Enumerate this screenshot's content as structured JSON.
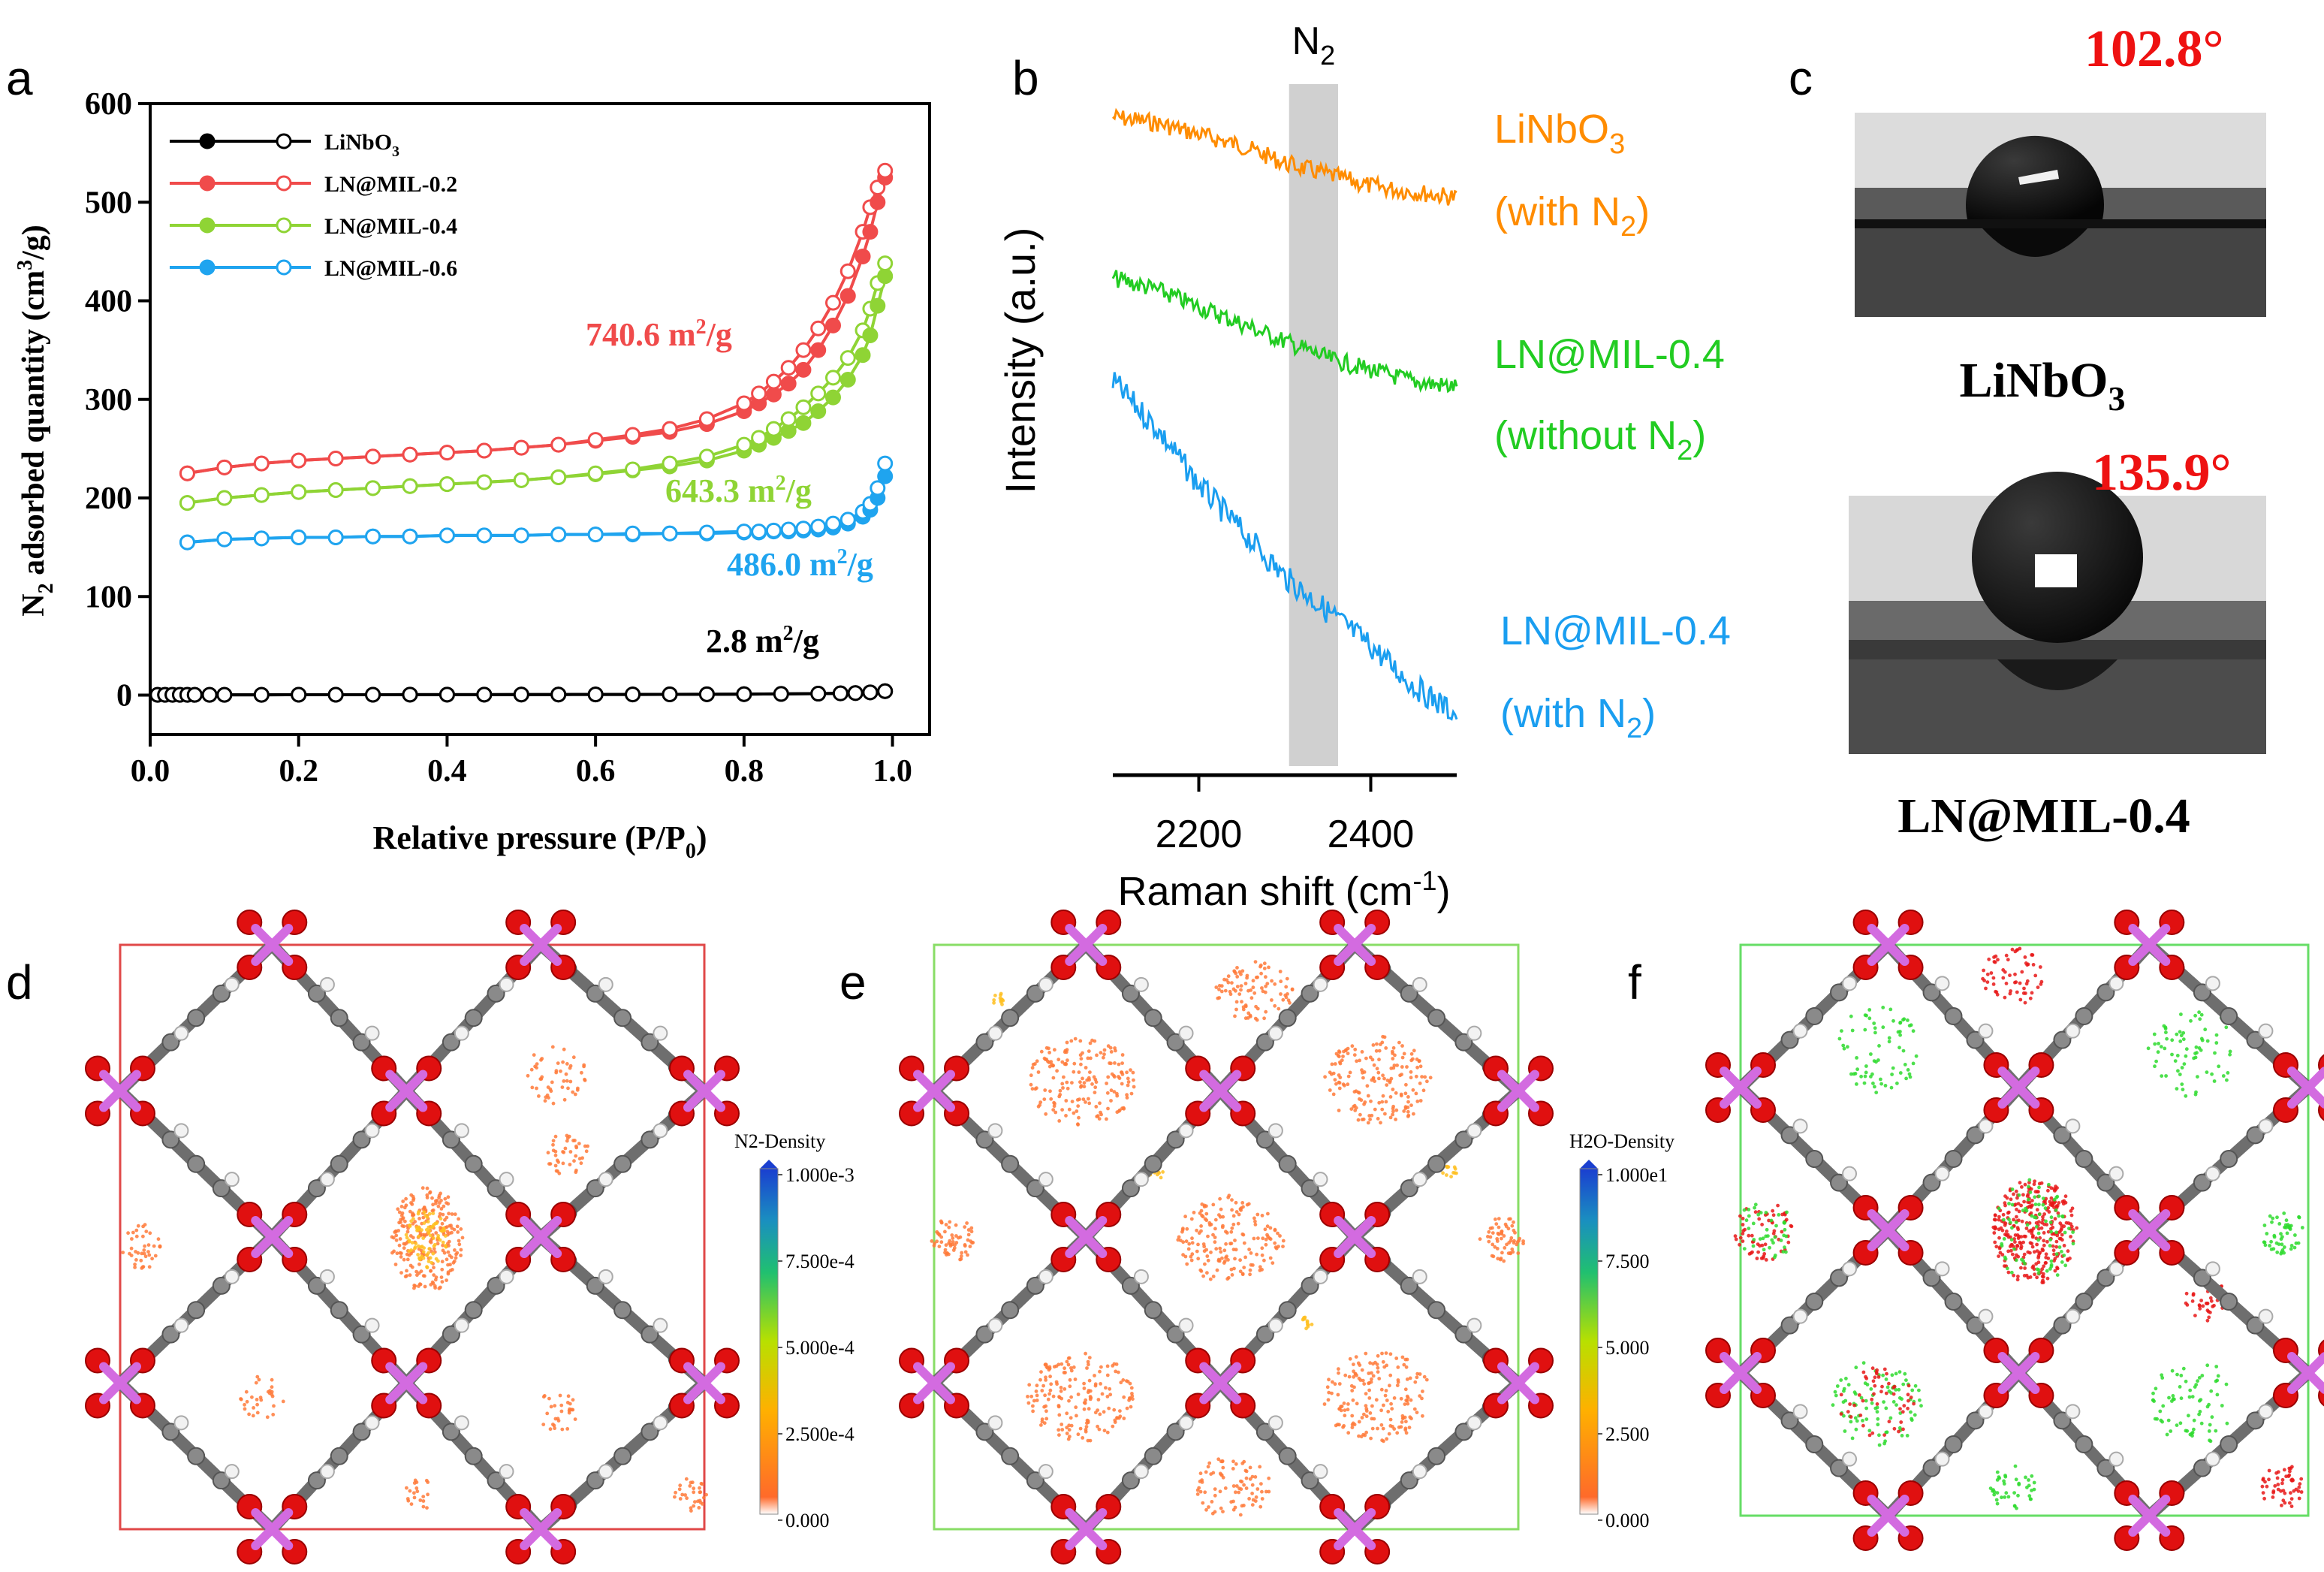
{
  "panel_letters": [
    "a",
    "b",
    "c",
    "d",
    "e",
    "f"
  ],
  "colors": {
    "black": "#000000",
    "red": "#f04b4b",
    "green": "#8fd435",
    "blue": "#1fa4ef",
    "raman_orange": "#ff8c00",
    "raman_green": "#22cc22",
    "raman_blue": "#1a9ef0",
    "angle_red": "#ee1111",
    "magenta": "#d36be0",
    "oxygen": "#e01010",
    "carbon": "#808080"
  },
  "chart_data": [
    {
      "panel": "a",
      "type": "line",
      "xlabel": "Relative pressure (P/P0)",
      "xlabel_main": "Relative pressure (P/P",
      "xlabel_sub": "0",
      "xlabel_end": ")",
      "ylabel": "N2 adsorbed quantity (cm3/g)",
      "ylabel_parts": [
        "N",
        "2",
        " adsorbed quantity (cm",
        "3",
        "/g)"
      ],
      "xlim": [
        0.0,
        1.05
      ],
      "ylim": [
        -40,
        600
      ],
      "xticks": [
        0.0,
        0.2,
        0.4,
        0.6,
        0.8,
        1.0
      ],
      "xtick_labels": [
        "0.0",
        "0.2",
        "0.4",
        "0.6",
        "0.8",
        "1.0"
      ],
      "yticks": [
        0,
        100,
        200,
        300,
        400,
        500,
        600
      ],
      "ytick_labels": [
        "0",
        "100",
        "200",
        "300",
        "400",
        "500",
        "600"
      ],
      "legend": [
        {
          "label": "LiNbO3",
          "main": "LiNbO",
          "sub": "3"
        },
        {
          "label": "LN@MIL-0.2",
          "main": "LN@MIL-0.2",
          "sub": ""
        },
        {
          "label": "LN@MIL-0.4",
          "main": "LN@MIL-0.4",
          "sub": ""
        },
        {
          "label": "LN@MIL-0.6",
          "main": "LN@MIL-0.6",
          "sub": ""
        }
      ],
      "annotations": [
        {
          "text": "740.6 m2/g",
          "main": "740.6 m",
          "sup": "2",
          "end": "/g"
        },
        {
          "text": "643.3 m2/g",
          "main": "643.3 m",
          "sup": "2",
          "end": "/g"
        },
        {
          "text": "486.0 m2/g",
          "main": "486.0 m",
          "sup": "2",
          "end": "/g"
        },
        {
          "text": "2.8 m2/g",
          "main": "2.8 m",
          "sup": "2",
          "end": "/g"
        }
      ],
      "series": [
        {
          "name": "LiNbO3",
          "color": "#000000",
          "x": [
            0.01,
            0.02,
            0.03,
            0.04,
            0.05,
            0.06,
            0.08,
            0.1,
            0.15,
            0.2,
            0.25,
            0.3,
            0.35,
            0.4,
            0.45,
            0.5,
            0.55,
            0.6,
            0.65,
            0.7,
            0.75,
            0.8,
            0.85,
            0.9,
            0.93,
            0.95,
            0.97,
            0.99
          ],
          "adsorption": [
            0.3,
            0.3,
            0.3,
            0.3,
            0.3,
            0.3,
            0.3,
            0.3,
            0.3,
            0.4,
            0.4,
            0.4,
            0.5,
            0.5,
            0.5,
            0.6,
            0.6,
            0.7,
            0.7,
            0.8,
            0.9,
            1.0,
            1.2,
            1.5,
            1.8,
            2.1,
            2.8,
            4.0
          ],
          "desorption": [
            0.3,
            0.3,
            0.3,
            0.3,
            0.3,
            0.3,
            0.3,
            0.3,
            0.3,
            0.4,
            0.4,
            0.4,
            0.5,
            0.5,
            0.5,
            0.6,
            0.6,
            0.7,
            0.7,
            0.8,
            0.9,
            1.0,
            1.2,
            1.5,
            1.8,
            2.1,
            2.8,
            4.0
          ]
        },
        {
          "name": "LN@MIL-0.2",
          "color": "#f04b4b",
          "x": [
            0.05,
            0.1,
            0.15,
            0.2,
            0.25,
            0.3,
            0.35,
            0.4,
            0.45,
            0.5,
            0.55,
            0.6,
            0.65,
            0.7,
            0.75,
            0.8,
            0.82,
            0.84,
            0.86,
            0.88,
            0.9,
            0.92,
            0.94,
            0.96,
            0.97,
            0.98,
            0.99
          ],
          "adsorption": [
            225,
            231,
            235,
            238,
            240,
            242,
            244,
            246,
            248,
            251,
            254,
            258,
            262,
            267,
            275,
            288,
            296,
            305,
            316,
            330,
            350,
            375,
            405,
            445,
            470,
            500,
            525
          ],
          "desorption": [
            225,
            231,
            235,
            238,
            240,
            242,
            244,
            246,
            248,
            251,
            254,
            259,
            264,
            270,
            280,
            296,
            306,
            318,
            332,
            350,
            372,
            398,
            430,
            470,
            495,
            515,
            532
          ]
        },
        {
          "name": "LN@MIL-0.4",
          "color": "#8fd435",
          "x": [
            0.05,
            0.1,
            0.15,
            0.2,
            0.25,
            0.3,
            0.35,
            0.4,
            0.45,
            0.5,
            0.55,
            0.6,
            0.65,
            0.7,
            0.75,
            0.8,
            0.82,
            0.84,
            0.86,
            0.88,
            0.9,
            0.92,
            0.94,
            0.96,
            0.97,
            0.98,
            0.99
          ],
          "adsorption": [
            195,
            200,
            203,
            206,
            208,
            210,
            212,
            214,
            216,
            218,
            221,
            224,
            228,
            232,
            238,
            248,
            254,
            261,
            268,
            276,
            288,
            302,
            320,
            345,
            365,
            395,
            425
          ],
          "desorption": [
            195,
            200,
            203,
            206,
            208,
            210,
            212,
            214,
            216,
            218,
            221,
            225,
            229,
            235,
            242,
            254,
            261,
            270,
            280,
            292,
            306,
            322,
            342,
            370,
            392,
            418,
            438
          ]
        },
        {
          "name": "LN@MIL-0.6",
          "color": "#1fa4ef",
          "x": [
            0.05,
            0.1,
            0.15,
            0.2,
            0.25,
            0.3,
            0.35,
            0.4,
            0.45,
            0.5,
            0.55,
            0.6,
            0.65,
            0.7,
            0.75,
            0.8,
            0.82,
            0.84,
            0.86,
            0.88,
            0.9,
            0.92,
            0.94,
            0.96,
            0.97,
            0.98,
            0.99
          ],
          "adsorption": [
            155,
            158,
            159,
            160,
            160,
            161,
            161,
            162,
            162,
            162,
            163,
            163,
            163,
            164,
            164,
            165,
            165,
            166,
            166,
            167,
            168,
            170,
            174,
            181,
            188,
            200,
            222
          ],
          "desorption": [
            155,
            158,
            159,
            160,
            160,
            161,
            161,
            162,
            162,
            162,
            163,
            163,
            164,
            164,
            165,
            166,
            166,
            167,
            168,
            169,
            171,
            174,
            178,
            186,
            194,
            210,
            235
          ]
        }
      ]
    },
    {
      "panel": "b",
      "type": "line",
      "xlabel": "Raman shift (cm-1)",
      "xlabel_main": "Raman shift (cm",
      "xlabel_sup": "-1",
      "xlabel_end": ")",
      "ylabel": "Intensity (a.u.)",
      "xlim": [
        2100,
        2500
      ],
      "xticks": [
        2200,
        2400
      ],
      "xtick_labels": [
        "2200",
        "2400"
      ],
      "band_label": "N2",
      "band_main": "N",
      "band_sub": "2",
      "band_range": [
        2305,
        2362
      ],
      "series": [
        {
          "name": "LiNbO3 (with N2)",
          "line1_main": "LiNbO",
          "line1_sub": "3",
          "line2_main": "(with N",
          "line2_sub": "2",
          "line2_end": ")",
          "color": "#ff8c00",
          "x": [
            2100,
            2150,
            2200,
            2250,
            2300,
            2350,
            2400,
            2450,
            2500
          ],
          "y": [
            0.94,
            0.93,
            0.91,
            0.89,
            0.86,
            0.84,
            0.82,
            0.81,
            0.8
          ]
        },
        {
          "name": "LN@MIL-0.4 (without N2)",
          "line1_main": "LN@MIL-0.4",
          "line1_sub": "",
          "line2_main": "(without N",
          "line2_sub": "2",
          "line2_end": ")",
          "color": "#22cc22",
          "x": [
            2100,
            2150,
            2200,
            2250,
            2300,
            2350,
            2400,
            2450,
            2500
          ],
          "y": [
            0.66,
            0.64,
            0.61,
            0.58,
            0.55,
            0.52,
            0.5,
            0.48,
            0.47
          ]
        },
        {
          "name": "LN@MIL-0.4 (with N2)",
          "line1_main": "LN@MIL-0.4",
          "line1_sub": "",
          "line2_main": "(with N",
          "line2_sub": "2",
          "line2_end": ")",
          "color": "#1a9ef0",
          "x": [
            2100,
            2150,
            2200,
            2250,
            2300,
            2350,
            2400,
            2450,
            2500
          ],
          "y": [
            0.48,
            0.4,
            0.3,
            0.22,
            0.14,
            0.08,
            0.02,
            -0.05,
            -0.1
          ]
        }
      ]
    }
  ],
  "panel_c": {
    "samples": [
      {
        "name": "LiNbO3",
        "name_main": "LiNbO",
        "name_sub": "3",
        "angle": "102.8°",
        "angle_value": 102.8
      },
      {
        "name": "LN@MIL-0.4",
        "name_main": "LN@MIL-0.4",
        "name_sub": "",
        "angle": "135.9°",
        "angle_value": 135.9
      }
    ]
  },
  "colorbars": [
    {
      "panel": "d",
      "title": "N2-Density",
      "ticks": [
        "1.000e-3",
        "7.500e-4",
        "5.000e-4",
        "2.500e-4",
        "0.000"
      ]
    },
    {
      "panel": "e",
      "title": "H2O-Density",
      "ticks": [
        "1.000e1",
        "7.500",
        "5.000",
        "2.500",
        "0.000"
      ]
    }
  ]
}
